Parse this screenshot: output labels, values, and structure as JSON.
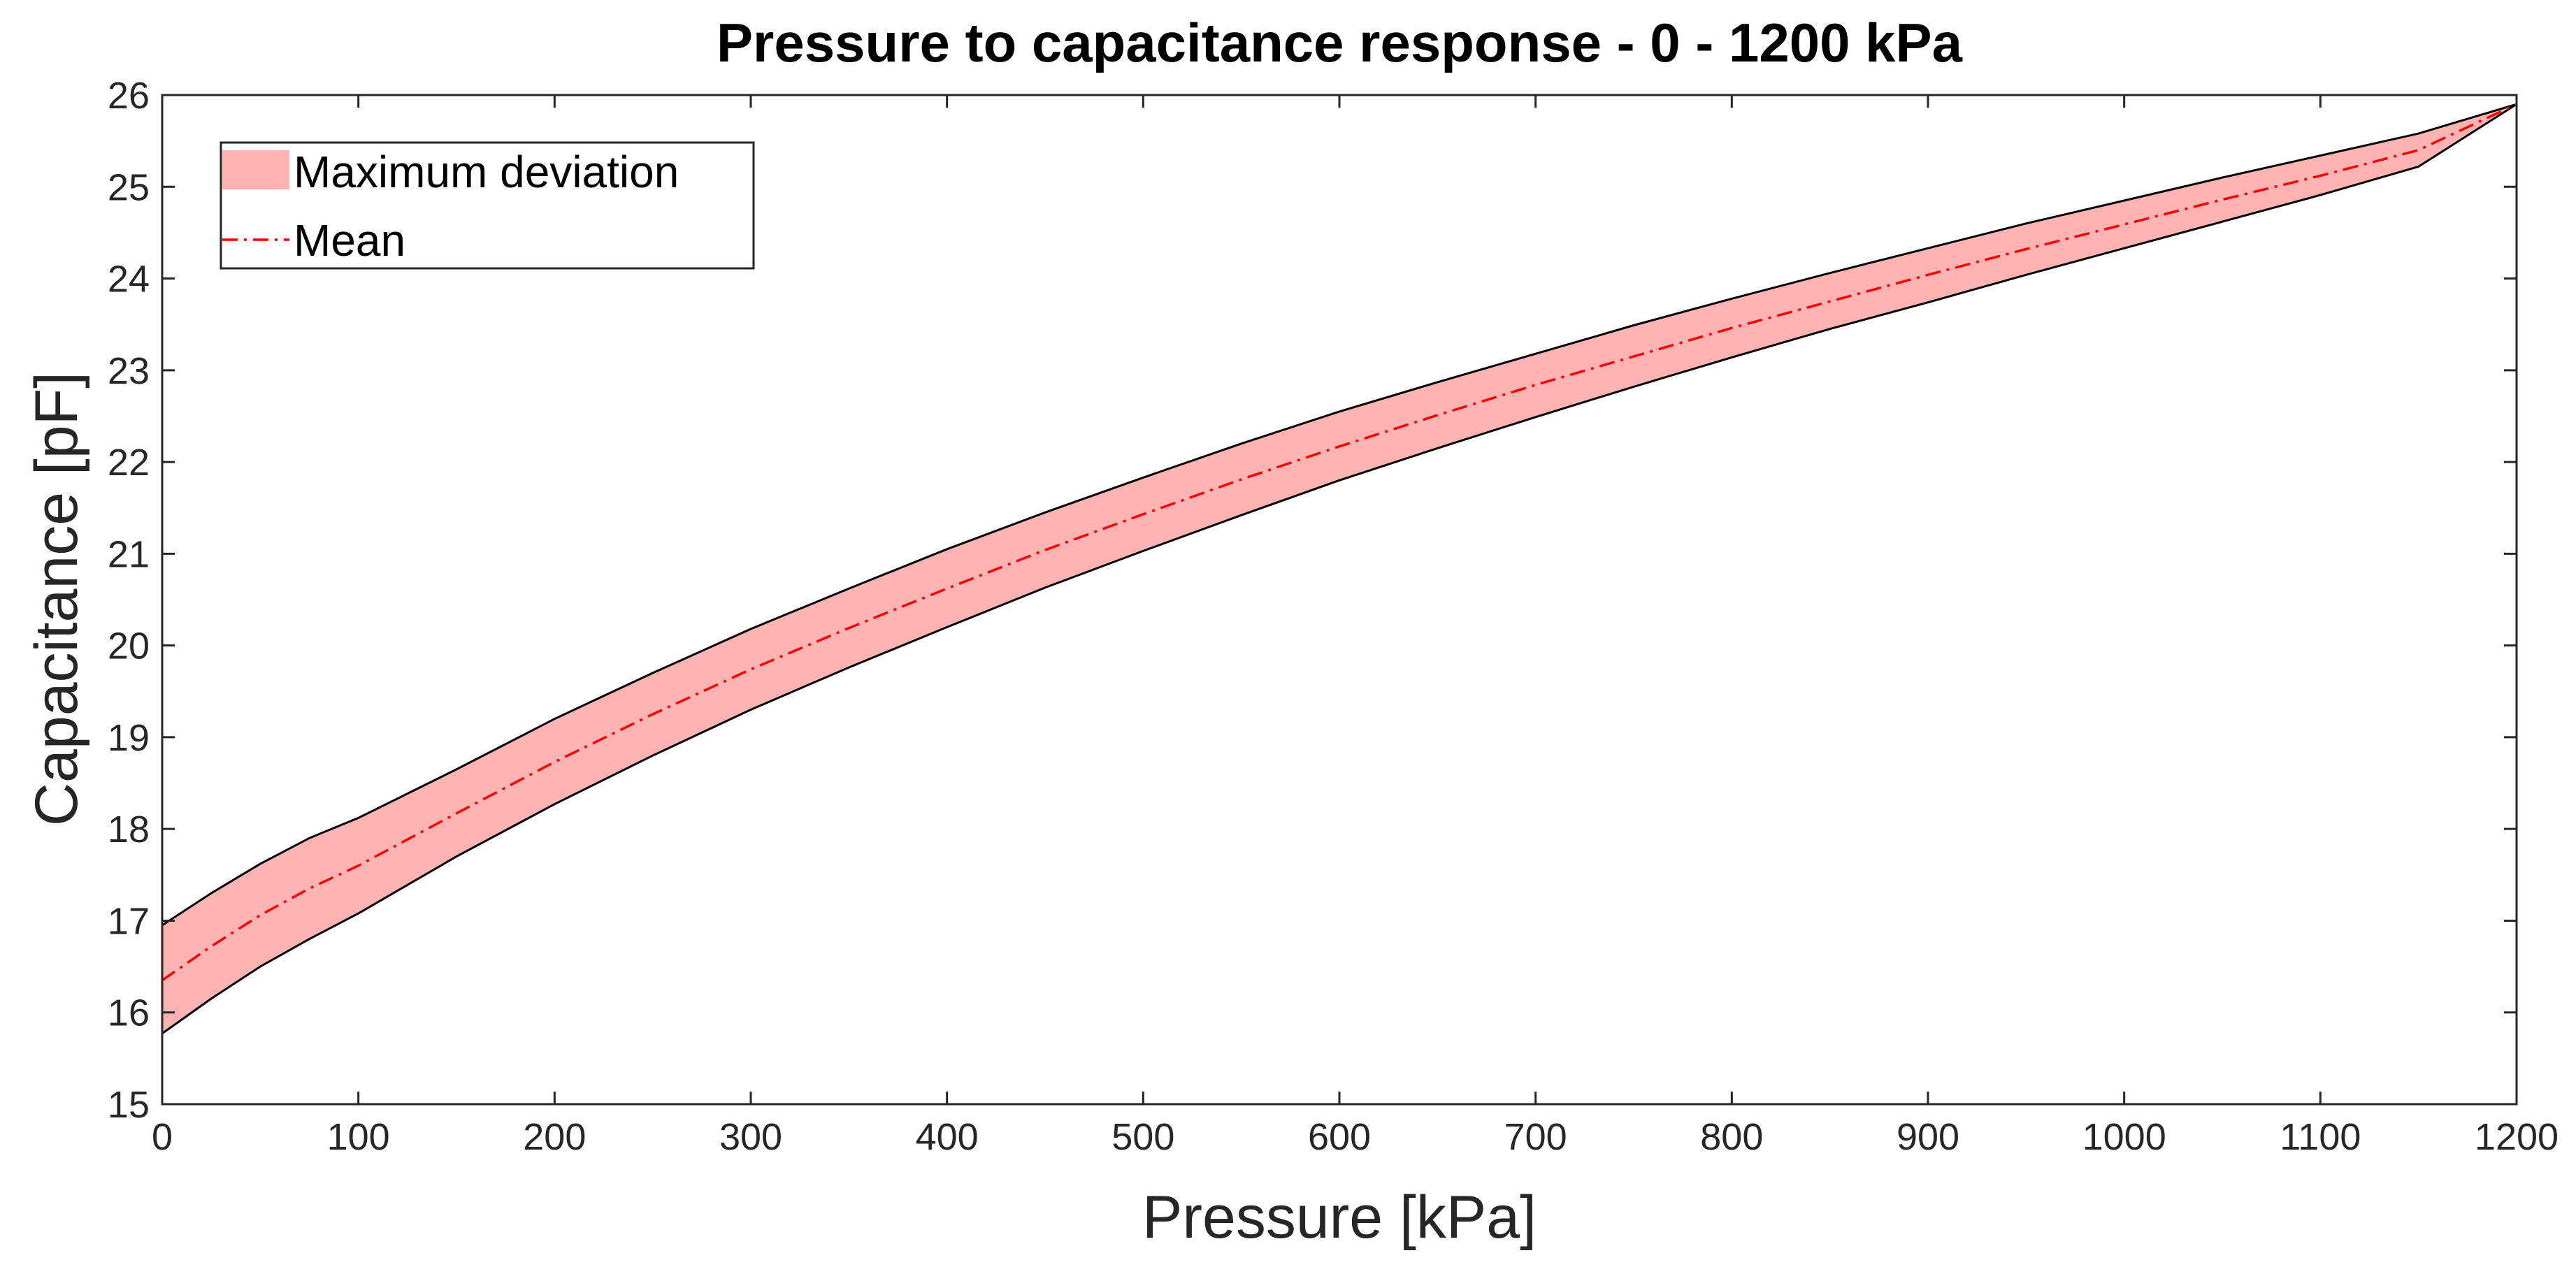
{
  "chart_data": {
    "type": "area",
    "title": "Pressure to capacitance response - 0 - 1200 kPa",
    "xlabel": "Pressure [kPa]",
    "ylabel": "Capacitance [pF]",
    "xlim": [
      0,
      1200
    ],
    "ylim": [
      15,
      26
    ],
    "xticks": [
      0,
      100,
      200,
      300,
      400,
      500,
      600,
      700,
      800,
      900,
      1000,
      1100,
      1200
    ],
    "yticks": [
      15,
      16,
      17,
      18,
      19,
      20,
      21,
      22,
      23,
      24,
      25,
      26
    ],
    "x": [
      0,
      25,
      50,
      75,
      100,
      150,
      200,
      250,
      300,
      350,
      400,
      450,
      500,
      550,
      600,
      650,
      700,
      750,
      800,
      850,
      900,
      950,
      1000,
      1050,
      1100,
      1150,
      1200
    ],
    "series": [
      {
        "name": "Maximum deviation",
        "kind": "band",
        "color": "#ffb3b3",
        "edge_color": "#000000",
        "upper": [
          16.95,
          17.3,
          17.62,
          17.9,
          18.12,
          18.65,
          19.2,
          19.7,
          20.18,
          20.62,
          21.05,
          21.45,
          21.83,
          22.2,
          22.55,
          22.87,
          23.18,
          23.49,
          23.78,
          24.06,
          24.33,
          24.6,
          24.85,
          25.1,
          25.34,
          25.58,
          25.9
        ],
        "lower": [
          15.77,
          16.15,
          16.5,
          16.8,
          17.08,
          17.7,
          18.27,
          18.8,
          19.3,
          19.76,
          20.2,
          20.63,
          21.03,
          21.42,
          21.8,
          22.15,
          22.49,
          22.82,
          23.14,
          23.45,
          23.74,
          24.04,
          24.33,
          24.62,
          24.91,
          25.22,
          25.9
        ]
      },
      {
        "name": "Mean",
        "kind": "line",
        "color": "#ff0000",
        "dash": "dash-dot",
        "values": [
          16.35,
          16.72,
          17.06,
          17.35,
          17.6,
          18.17,
          18.73,
          19.25,
          19.74,
          20.19,
          20.62,
          21.04,
          21.43,
          21.81,
          22.17,
          22.51,
          22.84,
          23.15,
          23.46,
          23.75,
          24.04,
          24.32,
          24.59,
          24.86,
          25.12,
          25.4,
          25.9
        ]
      }
    ],
    "legend": {
      "position": "top-left",
      "entries": [
        "Maximum deviation",
        "Mean"
      ]
    },
    "grid": false
  }
}
